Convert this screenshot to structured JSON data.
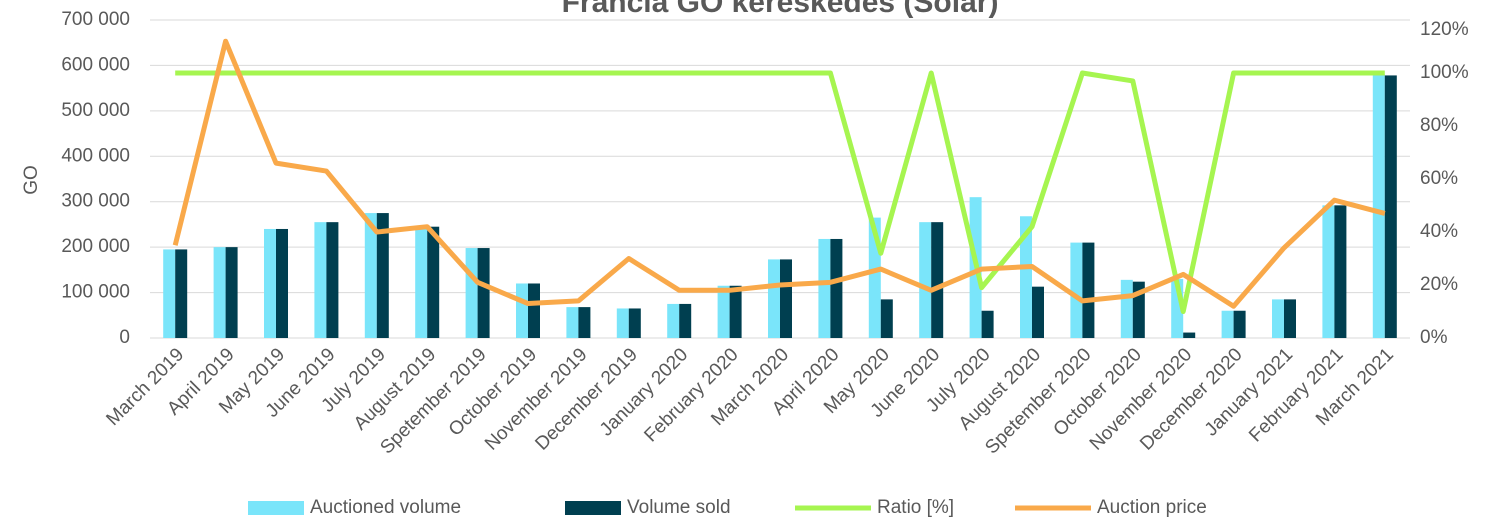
{
  "chart_data": {
    "type": "bar",
    "title": "Francia GO kereskedés (Solar)",
    "ylabel": "GO",
    "categories": [
      "March 2019",
      "April 2019",
      "May 2019",
      "June 2019",
      "July 2019",
      "August 2019",
      "Spetember 2019",
      "October 2019",
      "November 2019",
      "December 2019",
      "January 2020",
      "February 2020",
      "March 2020",
      "April 2020",
      "May 2020",
      "June 2020",
      "July 2020",
      "August 2020",
      "Spetember 2020",
      "October 2020",
      "November 2020",
      "December 2020",
      "January 2021",
      "February 2021",
      "March 2021"
    ],
    "series": [
      {
        "name": "Auctioned volume",
        "type": "bar",
        "color": "#7ae5fa",
        "values": [
          195000,
          200000,
          240000,
          255000,
          275000,
          245000,
          198000,
          120000,
          68000,
          65000,
          75000,
          115000,
          173000,
          218000,
          265000,
          255000,
          310000,
          268000,
          210000,
          128000,
          130000,
          60000,
          85000,
          292000,
          580000
        ]
      },
      {
        "name": "Volume sold",
        "type": "bar",
        "color": "#003f50",
        "values": [
          195000,
          200000,
          240000,
          255000,
          275000,
          245000,
          198000,
          120000,
          68000,
          65000,
          75000,
          115000,
          173000,
          218000,
          85000,
          255000,
          60000,
          113000,
          210000,
          124000,
          12000,
          60000,
          85000,
          292000,
          578000
        ]
      },
      {
        "name": "Ratio [%]",
        "type": "line",
        "axis": "y2",
        "color": "#a6f550",
        "values": [
          100,
          100,
          100,
          100,
          100,
          100,
          100,
          100,
          100,
          100,
          100,
          100,
          100,
          100,
          32,
          100,
          19,
          42,
          100,
          97,
          10,
          100,
          100,
          100,
          100
        ]
      },
      {
        "name": "Auction price",
        "type": "line",
        "axis": "y2",
        "color": "#f9a94a",
        "values": [
          35,
          112,
          66,
          63,
          40,
          42,
          21,
          13,
          14,
          30,
          18,
          18,
          20,
          21,
          26,
          18,
          26,
          27,
          14,
          16,
          24,
          12,
          34,
          52,
          47
        ]
      }
    ],
    "ylim": [
      0,
      700000
    ],
    "yticks": [
      {
        "value": 0,
        "label": "0"
      },
      {
        "value": 100000,
        "label": "100 000"
      },
      {
        "value": 200000,
        "label": "200 000"
      },
      {
        "value": 300000,
        "label": "300 000"
      },
      {
        "value": 400000,
        "label": "400 000"
      },
      {
        "value": 500000,
        "label": "500 000"
      },
      {
        "value": 600000,
        "label": "600 000"
      },
      {
        "value": 700000,
        "label": "700 000"
      }
    ],
    "y2lim": [
      0,
      120
    ],
    "y2ticks": [
      {
        "value": 0,
        "label": "0%"
      },
      {
        "value": 20,
        "label": "20%"
      },
      {
        "value": 40,
        "label": "40%"
      },
      {
        "value": 60,
        "label": "60%"
      },
      {
        "value": 80,
        "label": "80%"
      },
      {
        "value": 100,
        "label": "100%"
      },
      {
        "value": 120,
        "label": "120%"
      }
    ],
    "grid": true,
    "legend": "bottom"
  }
}
